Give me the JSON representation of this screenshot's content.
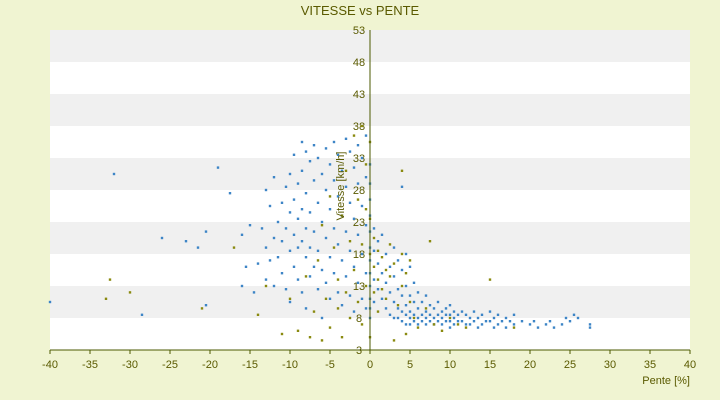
{
  "chart_data": {
    "type": "scatter",
    "title": "VITESSE vs PENTE",
    "xlabel": "Pente [%]",
    "ylabel": "Vitesse [km/h]",
    "xlim": [
      -40,
      40
    ],
    "ylim": [
      3,
      53
    ],
    "x_ticks": [
      "-40",
      "-35",
      "-30",
      "-25",
      "-20",
      "-15",
      "-10",
      "-5",
      "0",
      "5",
      "10",
      "15",
      "20",
      "25",
      "30",
      "35",
      "40"
    ],
    "y_ticks": [
      "3",
      "8",
      "13",
      "18",
      "23",
      "28",
      "33",
      "38",
      "43",
      "48",
      "53"
    ],
    "grid": "horizontal alternating bands",
    "colors": {
      "series_blue": "#3d85c6",
      "series_olive": "#8a8a10",
      "axis": "#4b5a00",
      "band_light": "#ffffff",
      "band_dark": "#f0f0f0"
    },
    "series": [
      {
        "color": "#3d85c6",
        "points": [
          [
            -40,
            10.5
          ],
          [
            -32,
            30.5
          ],
          [
            -28.5,
            8.5
          ],
          [
            -26,
            20.5
          ],
          [
            -23,
            20
          ],
          [
            -21.5,
            19
          ],
          [
            -20.5,
            21.5
          ],
          [
            -20.5,
            10
          ],
          [
            -19,
            31.5
          ],
          [
            -17.5,
            27.5
          ],
          [
            -16,
            21
          ],
          [
            -16,
            13
          ],
          [
            -15.5,
            16
          ],
          [
            -15,
            22.5
          ],
          [
            -14.5,
            12
          ],
          [
            -14,
            16.5
          ],
          [
            -13.5,
            22
          ],
          [
            -13,
            28
          ],
          [
            -13,
            19
          ],
          [
            -13,
            14
          ],
          [
            -12.5,
            25.5
          ],
          [
            -12.5,
            17
          ],
          [
            -12,
            30
          ],
          [
            -12,
            20.5
          ],
          [
            -12,
            13
          ],
          [
            -11.5,
            23
          ],
          [
            -11.5,
            17.5
          ],
          [
            -11,
            26
          ],
          [
            -11,
            20
          ],
          [
            -11,
            15
          ],
          [
            -10.5,
            28.5
          ],
          [
            -10.5,
            22
          ],
          [
            -10.5,
            12.5
          ],
          [
            -10,
            30.5
          ],
          [
            -10,
            24.5
          ],
          [
            -10,
            18.5
          ],
          [
            -10,
            10.5
          ],
          [
            -9.5,
            33.5
          ],
          [
            -9.5,
            26.5
          ],
          [
            -9.5,
            21
          ],
          [
            -9.5,
            16
          ],
          [
            -9,
            29
          ],
          [
            -9,
            23.5
          ],
          [
            -9,
            19
          ],
          [
            -9,
            14
          ],
          [
            -8.5,
            35.5
          ],
          [
            -8.5,
            31
          ],
          [
            -8.5,
            25
          ],
          [
            -8.5,
            20
          ],
          [
            -8.5,
            12
          ],
          [
            -8,
            34
          ],
          [
            -8,
            27.5
          ],
          [
            -8,
            22
          ],
          [
            -8,
            17.5
          ],
          [
            -8,
            9.5
          ],
          [
            -7.5,
            32.5
          ],
          [
            -7.5,
            24.5
          ],
          [
            -7.5,
            19
          ],
          [
            -7.5,
            14.5
          ],
          [
            -7,
            35
          ],
          [
            -7,
            29.5
          ],
          [
            -7,
            21.5
          ],
          [
            -7,
            16
          ],
          [
            -6.5,
            33
          ],
          [
            -6.5,
            26
          ],
          [
            -6.5,
            18.5
          ],
          [
            -6.5,
            12.5
          ],
          [
            -6,
            30.5
          ],
          [
            -6,
            23
          ],
          [
            -6,
            15.5
          ],
          [
            -6,
            8
          ],
          [
            -5.5,
            34.5
          ],
          [
            -5.5,
            28
          ],
          [
            -5.5,
            20.5
          ],
          [
            -5.5,
            13.5
          ],
          [
            -5,
            32
          ],
          [
            -5,
            25
          ],
          [
            -5,
            17.5
          ],
          [
            -5,
            11
          ],
          [
            -4.5,
            35.5
          ],
          [
            -4.5,
            29.5
          ],
          [
            -4.5,
            22
          ],
          [
            -4.5,
            15
          ],
          [
            -4,
            33.5
          ],
          [
            -4,
            27
          ],
          [
            -4,
            19.5
          ],
          [
            -4,
            12
          ],
          [
            -3.5,
            31
          ],
          [
            -3.5,
            24
          ],
          [
            -3.5,
            17
          ],
          [
            -3.5,
            10
          ],
          [
            -3,
            36
          ],
          [
            -3,
            28.5
          ],
          [
            -3,
            21.5
          ],
          [
            -3,
            14.5
          ],
          [
            -2.5,
            34
          ],
          [
            -2.5,
            26
          ],
          [
            -2.5,
            18.5
          ],
          [
            -2.5,
            11.5
          ],
          [
            -2,
            31.5
          ],
          [
            -2,
            23.5
          ],
          [
            -2,
            16
          ],
          [
            -2,
            9
          ],
          [
            -1.5,
            35
          ],
          [
            -1.5,
            29
          ],
          [
            -1.5,
            21
          ],
          [
            -1.5,
            13.5
          ],
          [
            -1,
            33
          ],
          [
            -1,
            25.5
          ],
          [
            -1,
            18
          ],
          [
            -1,
            11
          ],
          [
            -0.5,
            36.5
          ],
          [
            -0.5,
            30
          ],
          [
            -0.5,
            22.5
          ],
          [
            -0.5,
            15
          ],
          [
            -0.5,
            9.5
          ],
          [
            0,
            32
          ],
          [
            0,
            29
          ],
          [
            0,
            26.5
          ],
          [
            0,
            24
          ],
          [
            0,
            21.5
          ],
          [
            0,
            19
          ],
          [
            0,
            17
          ],
          [
            0,
            15
          ],
          [
            0,
            13
          ],
          [
            0,
            11
          ],
          [
            0,
            9.5
          ],
          [
            0,
            8
          ],
          [
            0.5,
            22
          ],
          [
            0.5,
            18.5
          ],
          [
            0.5,
            14
          ],
          [
            0.5,
            10.5
          ],
          [
            1,
            20
          ],
          [
            1,
            16.5
          ],
          [
            1,
            12.5
          ],
          [
            1.5,
            21
          ],
          [
            1.5,
            15
          ],
          [
            1.5,
            11
          ],
          [
            2,
            18
          ],
          [
            2,
            13.5
          ],
          [
            2,
            9.5
          ],
          [
            2.5,
            16
          ],
          [
            2.5,
            12
          ],
          [
            2.5,
            8.5
          ],
          [
            3,
            19
          ],
          [
            3,
            14.5
          ],
          [
            3,
            10.5
          ],
          [
            3,
            8
          ],
          [
            3.5,
            17
          ],
          [
            3.5,
            12.5
          ],
          [
            3.5,
            9.5
          ],
          [
            3.5,
            8
          ],
          [
            4,
            28.5
          ],
          [
            4,
            15.5
          ],
          [
            4,
            11.5
          ],
          [
            4,
            9
          ],
          [
            4,
            7.5
          ],
          [
            4.5,
            18
          ],
          [
            4.5,
            13
          ],
          [
            4.5,
            10
          ],
          [
            4.5,
            8.5
          ],
          [
            4.5,
            7
          ],
          [
            5,
            16
          ],
          [
            5,
            11.5
          ],
          [
            5,
            9
          ],
          [
            5,
            8
          ],
          [
            5,
            7
          ],
          [
            5.5,
            13.5
          ],
          [
            5.5,
            10.5
          ],
          [
            5.5,
            8.5
          ],
          [
            5.5,
            7.5
          ],
          [
            6,
            12
          ],
          [
            6,
            9.5
          ],
          [
            6,
            8
          ],
          [
            6,
            7
          ],
          [
            6.5,
            10.5
          ],
          [
            6.5,
            8.5
          ],
          [
            6.5,
            7.5
          ],
          [
            7,
            11.5
          ],
          [
            7,
            9
          ],
          [
            7,
            8
          ],
          [
            7,
            7
          ],
          [
            7.5,
            10
          ],
          [
            7.5,
            8.5
          ],
          [
            7.5,
            7.5
          ],
          [
            8,
            9.5
          ],
          [
            8,
            8
          ],
          [
            8,
            7
          ],
          [
            8.5,
            10.5
          ],
          [
            8.5,
            8.5
          ],
          [
            8.5,
            7.5
          ],
          [
            9,
            9
          ],
          [
            9,
            8
          ],
          [
            9,
            7
          ],
          [
            9.5,
            9.5
          ],
          [
            9.5,
            8.5
          ],
          [
            9.5,
            7.5
          ],
          [
            10,
            10
          ],
          [
            10,
            8.5
          ],
          [
            10,
            7.5
          ],
          [
            10,
            6.5
          ],
          [
            10.5,
            9
          ],
          [
            10.5,
            8
          ],
          [
            10.5,
            7
          ],
          [
            11,
            8.5
          ],
          [
            11,
            7.5
          ],
          [
            11.5,
            9
          ],
          [
            11.5,
            7.5
          ],
          [
            12,
            8.5
          ],
          [
            12,
            7
          ],
          [
            12.5,
            8
          ],
          [
            12.5,
            7
          ],
          [
            13,
            9
          ],
          [
            13,
            7.5
          ],
          [
            13.5,
            8
          ],
          [
            13.5,
            6.5
          ],
          [
            14,
            8.5
          ],
          [
            14,
            7
          ],
          [
            14.5,
            7.5
          ],
          [
            15,
            9
          ],
          [
            15,
            7.5
          ],
          [
            15.5,
            8
          ],
          [
            15.5,
            6.5
          ],
          [
            16,
            8.5
          ],
          [
            16,
            7
          ],
          [
            16.5,
            7.5
          ],
          [
            17,
            8
          ],
          [
            17,
            6.5
          ],
          [
            17.5,
            7.5
          ],
          [
            18,
            8.5
          ],
          [
            18,
            7
          ],
          [
            19,
            7.5
          ],
          [
            20,
            7
          ],
          [
            20.5,
            7.5
          ],
          [
            21,
            6.5
          ],
          [
            22,
            7
          ],
          [
            22.5,
            7.5
          ],
          [
            23,
            6.5
          ],
          [
            24,
            7
          ],
          [
            24.5,
            8
          ],
          [
            25,
            7.5
          ],
          [
            25.5,
            8.5
          ],
          [
            26,
            8
          ],
          [
            27.5,
            6.5
          ],
          [
            27.5,
            7
          ]
        ]
      },
      {
        "color": "#8a8a10",
        "points": [
          [
            -33,
            11
          ],
          [
            -32.5,
            14
          ],
          [
            -30,
            12
          ],
          [
            -21,
            9.5
          ],
          [
            -17,
            19
          ],
          [
            -14,
            8.5
          ],
          [
            -13,
            13
          ],
          [
            -11,
            5.5
          ],
          [
            -10,
            11
          ],
          [
            -9,
            6
          ],
          [
            -8,
            14.5
          ],
          [
            -7.5,
            5
          ],
          [
            -7,
            9
          ],
          [
            -6.5,
            17
          ],
          [
            -6,
            4.5
          ],
          [
            -6,
            22.5
          ],
          [
            -5.5,
            11
          ],
          [
            -5,
            6.5
          ],
          [
            -5,
            27
          ],
          [
            -4.5,
            19
          ],
          [
            -4,
            9.5
          ],
          [
            -4,
            14
          ],
          [
            -3.5,
            5
          ],
          [
            -3.5,
            24
          ],
          [
            -3,
            12
          ],
          [
            -3,
            31
          ],
          [
            -2.5,
            8
          ],
          [
            -2.5,
            20
          ],
          [
            -2,
            36.5
          ],
          [
            -2,
            15.5
          ],
          [
            -1.5,
            10.5
          ],
          [
            -1.5,
            26.5
          ],
          [
            -1,
            7
          ],
          [
            -1,
            19.5
          ],
          [
            -1,
            38
          ],
          [
            -0.5,
            13
          ],
          [
            -0.5,
            25
          ],
          [
            -0.5,
            32
          ],
          [
            0,
            5
          ],
          [
            0,
            18
          ],
          [
            0,
            23.5
          ],
          [
            0,
            35.5
          ],
          [
            0.5,
            20.5
          ],
          [
            0.5,
            16
          ],
          [
            0.5,
            12
          ],
          [
            1,
            18.5
          ],
          [
            1,
            14
          ],
          [
            1,
            9
          ],
          [
            1.5,
            17.5
          ],
          [
            1.5,
            12.5
          ],
          [
            2,
            15.5
          ],
          [
            2,
            11
          ],
          [
            2.5,
            19.5
          ],
          [
            2.5,
            14.5
          ],
          [
            3,
            16.5
          ],
          [
            3,
            4.5
          ],
          [
            3.5,
            10
          ],
          [
            4,
            31
          ],
          [
            4,
            18
          ],
          [
            4,
            13
          ],
          [
            4.5,
            15
          ],
          [
            4.5,
            5.5
          ],
          [
            5,
            17
          ],
          [
            5,
            10.5
          ],
          [
            5.5,
            8
          ],
          [
            6,
            6.5
          ],
          [
            7,
            9.5
          ],
          [
            7.5,
            20
          ],
          [
            8,
            7
          ],
          [
            9,
            6
          ],
          [
            10,
            8
          ],
          [
            11,
            7
          ],
          [
            12,
            6.5
          ],
          [
            15,
            14
          ],
          [
            18,
            6.5
          ]
        ]
      }
    ]
  }
}
